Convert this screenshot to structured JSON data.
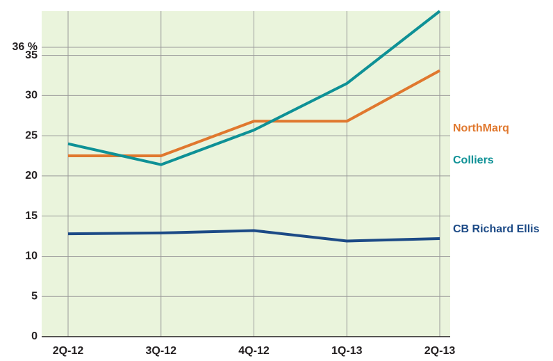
{
  "chart_data": {
    "type": "line",
    "categories": [
      "2Q-12",
      "3Q-12",
      "4Q-12",
      "1Q-13",
      "2Q-13"
    ],
    "series": [
      {
        "name": "NorthMarq",
        "color": "#e0782e",
        "values": [
          22.5,
          22.5,
          26.8,
          26.8,
          33.1
        ]
      },
      {
        "name": "Colliers",
        "color": "#0e9196",
        "values": [
          24.0,
          21.4,
          25.7,
          31.5,
          40.5
        ]
      },
      {
        "name": "CB Richard Ellis",
        "color": "#1c4a86",
        "values": [
          12.8,
          12.9,
          13.2,
          11.9,
          12.2
        ]
      }
    ],
    "ylim": [
      0,
      40.5
    ],
    "yticks": [
      0,
      5,
      10,
      15,
      20,
      25,
      30,
      35,
      {
        "value": 36,
        "label": "36 %"
      }
    ],
    "grid": true
  }
}
